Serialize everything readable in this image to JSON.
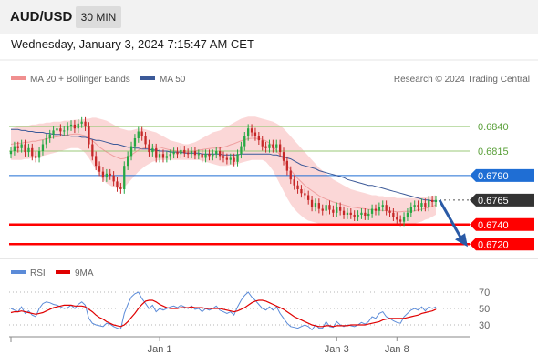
{
  "header": {
    "symbol": "AUD/USD",
    "timeframe": "30 MIN"
  },
  "timestamp": "Wednesday, January 3, 2024 7:15:47 AM CET",
  "colors": {
    "candle_up": "#27a844",
    "candle_down": "#c62828",
    "bollinger_fill": "#f9c9c9",
    "ma20": "#e77b7b",
    "ma50": "#3b5998",
    "support": "#ff0000",
    "resistance": "#9bc97a",
    "pivot": "#1f6ed4",
    "rsi": "#5b8bd8",
    "rsi_ma": "#e00000",
    "arrow": "#2a5aa6"
  },
  "legend": {
    "ma20_label": "MA 20 + Bollinger Bands",
    "ma50_label": "MA 50",
    "credit": "Research © 2024 Trading Central"
  },
  "rsi_legend": {
    "rsi_label": "RSI",
    "ma_label": "9MA"
  },
  "chart_data": [
    {
      "type": "candlestick",
      "price_levels": [
        {
          "value": 0.684,
          "label": "0.6840",
          "kind": "resistance"
        },
        {
          "value": 0.6815,
          "label": "0.6815",
          "kind": "resistance"
        },
        {
          "value": 0.679,
          "label": "0.6790",
          "kind": "pivot"
        },
        {
          "value": 0.6765,
          "label": "0.6765",
          "kind": "last"
        },
        {
          "value": 0.674,
          "label": "0.6740",
          "kind": "support"
        },
        {
          "value": 0.672,
          "label": "0.6720",
          "kind": "support"
        }
      ],
      "ylim": [
        0.6711,
        0.6867
      ],
      "projection": {
        "from": 0.6765,
        "to": 0.672,
        "direction": "down"
      },
      "close": [
        0.6815,
        0.682,
        0.6818,
        0.6822,
        0.6814,
        0.6818,
        0.681,
        0.6808,
        0.6815,
        0.6822,
        0.6828,
        0.6832,
        0.6836,
        0.6838,
        0.6835,
        0.6836,
        0.684,
        0.6842,
        0.6838,
        0.6843,
        0.6845,
        0.684,
        0.6822,
        0.681,
        0.68,
        0.6794,
        0.6788,
        0.6792,
        0.679,
        0.6784,
        0.6778,
        0.6776,
        0.68,
        0.681,
        0.682,
        0.6828,
        0.6835,
        0.683,
        0.6822,
        0.6814,
        0.6818,
        0.6808,
        0.6812,
        0.6808,
        0.681,
        0.6812,
        0.6814,
        0.6812,
        0.6816,
        0.6813,
        0.6812,
        0.6815,
        0.6811,
        0.6812,
        0.6808,
        0.6812,
        0.681,
        0.6812,
        0.6815,
        0.681,
        0.6808,
        0.6806,
        0.6808,
        0.6804,
        0.6812,
        0.682,
        0.683,
        0.6838,
        0.6834,
        0.683,
        0.6826,
        0.682,
        0.6818,
        0.6822,
        0.6818,
        0.6822,
        0.6814,
        0.6805,
        0.6795,
        0.6786,
        0.678,
        0.6776,
        0.6772,
        0.677,
        0.6765,
        0.6758,
        0.6762,
        0.6756,
        0.6754,
        0.676,
        0.6755,
        0.6752,
        0.6758,
        0.6754,
        0.675,
        0.6752,
        0.675,
        0.6748,
        0.675,
        0.6752,
        0.6749,
        0.6751,
        0.6756,
        0.6754,
        0.6758,
        0.676,
        0.6754,
        0.6752,
        0.6748,
        0.6745,
        0.6743,
        0.6748,
        0.6752,
        0.6758,
        0.676,
        0.6758,
        0.6762,
        0.6758,
        0.6765,
        0.6763,
        0.6765
      ],
      "ma50": [
        0.6837,
        0.6837,
        0.6837,
        0.6836,
        0.6836,
        0.6835,
        0.6835,
        0.6834,
        0.6834,
        0.6834,
        0.6833,
        0.6833,
        0.6832,
        0.6832,
        0.6832,
        0.6831,
        0.6831,
        0.683,
        0.683,
        0.683,
        0.6829,
        0.6829,
        0.6828,
        0.6827,
        0.6826,
        0.6826,
        0.6825,
        0.6824,
        0.6823,
        0.6822,
        0.6822,
        0.6821,
        0.682,
        0.6819,
        0.6819,
        0.6818,
        0.6818,
        0.6817,
        0.6817,
        0.6817,
        0.6816,
        0.6816,
        0.6815,
        0.6815,
        0.6815,
        0.6814,
        0.6814,
        0.6814,
        0.6814,
        0.6813,
        0.6813,
        0.6813,
        0.6813,
        0.6813,
        0.6812,
        0.6812,
        0.6812,
        0.6812,
        0.6812,
        0.6812,
        0.6811,
        0.6811,
        0.6811,
        0.6811,
        0.6811,
        0.6812,
        0.6812,
        0.6812,
        0.6812,
        0.6812,
        0.6812,
        0.6812,
        0.6812,
        0.6812,
        0.6811,
        0.6811,
        0.681,
        0.6809,
        0.6808,
        0.6807,
        0.6805,
        0.6803,
        0.6801,
        0.68,
        0.6799,
        0.6798,
        0.6797,
        0.6795,
        0.6794,
        0.6793,
        0.6792,
        0.6791,
        0.679,
        0.6789,
        0.6788,
        0.6786,
        0.6785,
        0.6784,
        0.6783,
        0.6782,
        0.6781,
        0.678,
        0.678,
        0.6779,
        0.6778,
        0.6777,
        0.6776,
        0.6775,
        0.6774,
        0.6773,
        0.6772,
        0.6771,
        0.677,
        0.6769,
        0.6768,
        0.6767,
        0.6766,
        0.6765,
        0.6765,
        0.6764,
        0.6764
      ],
      "bb_upper": [
        0.6838,
        0.6839,
        0.684,
        0.684,
        0.6841,
        0.6841,
        0.6842,
        0.6842,
        0.6843,
        0.6843,
        0.6844,
        0.6844,
        0.6845,
        0.6845,
        0.6845,
        0.6846,
        0.6846,
        0.6846,
        0.6847,
        0.6847,
        0.6847,
        0.6848,
        0.6848,
        0.6849,
        0.6849,
        0.6848,
        0.6847,
        0.6846,
        0.6844,
        0.6842,
        0.684,
        0.6838,
        0.6837,
        0.6836,
        0.6836,
        0.6837,
        0.6838,
        0.6838,
        0.6837,
        0.6836,
        0.6835,
        0.6834,
        0.6832,
        0.683,
        0.6828,
        0.6826,
        0.6825,
        0.6824,
        0.6823,
        0.6822,
        0.6822,
        0.6823,
        0.6824,
        0.6826,
        0.6828,
        0.683,
        0.6832,
        0.6834,
        0.6835,
        0.6836,
        0.6838,
        0.684,
        0.6842,
        0.6844,
        0.6846,
        0.6848,
        0.6849,
        0.685,
        0.685,
        0.685,
        0.6849,
        0.6848,
        0.6847,
        0.6846,
        0.6845,
        0.6843,
        0.6841,
        0.6838,
        0.6834,
        0.683,
        0.6826,
        0.6822,
        0.6818,
        0.6814,
        0.681,
        0.6806,
        0.6802,
        0.6798,
        0.6795,
        0.6792,
        0.6789,
        0.6786,
        0.6784,
        0.6782,
        0.678,
        0.6778,
        0.6776,
        0.6775,
        0.6774,
        0.6773,
        0.6772,
        0.6771,
        0.677,
        0.677,
        0.6769,
        0.6769,
        0.6768,
        0.6768,
        0.6768,
        0.6767,
        0.6767,
        0.6767,
        0.6767,
        0.6767,
        0.6767,
        0.6768,
        0.6768,
        0.6768,
        0.6769,
        0.6769,
        0.677
      ],
      "bb_lower": [
        0.6806,
        0.6806,
        0.6806,
        0.6806,
        0.6807,
        0.6807,
        0.6808,
        0.6808,
        0.6809,
        0.681,
        0.6811,
        0.6812,
        0.6813,
        0.6814,
        0.6815,
        0.6816,
        0.6817,
        0.6818,
        0.6818,
        0.6818,
        0.6816,
        0.6813,
        0.6808,
        0.6802,
        0.6796,
        0.679,
        0.6786,
        0.6782,
        0.678,
        0.6778,
        0.6777,
        0.6776,
        0.6778,
        0.6782,
        0.6786,
        0.679,
        0.6794,
        0.6797,
        0.68,
        0.6802,
        0.6804,
        0.6805,
        0.6806,
        0.6806,
        0.6806,
        0.6806,
        0.6806,
        0.6806,
        0.6806,
        0.6806,
        0.6806,
        0.6806,
        0.6806,
        0.6806,
        0.6805,
        0.6804,
        0.6803,
        0.6802,
        0.6801,
        0.68,
        0.68,
        0.68,
        0.6801,
        0.6801,
        0.6802,
        0.6803,
        0.6804,
        0.6805,
        0.6806,
        0.6806,
        0.6806,
        0.6806,
        0.6804,
        0.68,
        0.6795,
        0.6788,
        0.6781,
        0.6774,
        0.6767,
        0.6761,
        0.6756,
        0.6752,
        0.6749,
        0.6746,
        0.6744,
        0.6743,
        0.6742,
        0.6741,
        0.674,
        0.674,
        0.674,
        0.674,
        0.674,
        0.674,
        0.674,
        0.674,
        0.674,
        0.674,
        0.674,
        0.674,
        0.674,
        0.674,
        0.674,
        0.674,
        0.674,
        0.674,
        0.674,
        0.674,
        0.6739,
        0.6739,
        0.6739,
        0.674,
        0.674,
        0.674,
        0.6741,
        0.6742,
        0.6743,
        0.6745,
        0.6746,
        0.6748,
        0.675
      ],
      "x_ticks": [
        {
          "label": "Jan 1",
          "index": 42
        },
        {
          "label": "Jan 3",
          "index": 92
        },
        {
          "label": "Jan 8",
          "index": 109
        }
      ]
    },
    {
      "type": "line",
      "panel": "RSI",
      "ylim": [
        20,
        80
      ],
      "y_ticks": [
        70,
        50,
        30
      ],
      "rsi": [
        50,
        48,
        46,
        52,
        44,
        47,
        42,
        40,
        50,
        56,
        58,
        57,
        55,
        54,
        52,
        50,
        51,
        54,
        50,
        55,
        58,
        54,
        38,
        32,
        30,
        29,
        28,
        32,
        31,
        28,
        26,
        25,
        44,
        55,
        64,
        68,
        70,
        62,
        56,
        50,
        54,
        46,
        50,
        48,
        50,
        52,
        53,
        51,
        54,
        52,
        50,
        53,
        49,
        50,
        46,
        50,
        48,
        50,
        53,
        48,
        46,
        44,
        46,
        42,
        52,
        60,
        66,
        70,
        64,
        60,
        55,
        50,
        48,
        52,
        48,
        52,
        44,
        38,
        32,
        28,
        27,
        26,
        28,
        30,
        28,
        24,
        30,
        26,
        26,
        34,
        28,
        27,
        34,
        30,
        28,
        30,
        29,
        28,
        30,
        33,
        31,
        34,
        40,
        38,
        44,
        46,
        40,
        38,
        35,
        33,
        32,
        40,
        44,
        48,
        50,
        48,
        52,
        47,
        52,
        50,
        52
      ],
      "rsi_ma": [
        45,
        46,
        46,
        47,
        46,
        45,
        44,
        43,
        44,
        45,
        47,
        49,
        51,
        52,
        53,
        54,
        54,
        54,
        53,
        53,
        53,
        52,
        49,
        46,
        42,
        39,
        37,
        34,
        32,
        30,
        29,
        28,
        30,
        34,
        39,
        44,
        50,
        55,
        59,
        60,
        60,
        58,
        55,
        53,
        51,
        50,
        50,
        50,
        51,
        51,
        51,
        52,
        51,
        51,
        51,
        50,
        50,
        50,
        50,
        50,
        49,
        48,
        47,
        46,
        47,
        49,
        51,
        54,
        57,
        59,
        60,
        60,
        59,
        57,
        55,
        53,
        51,
        49,
        46,
        43,
        40,
        38,
        36,
        34,
        32,
        30,
        29,
        28,
        28,
        29,
        29,
        28,
        29,
        29,
        29,
        29,
        30,
        30,
        30,
        30,
        30,
        31,
        32,
        33,
        34,
        36,
        37,
        38,
        38,
        38,
        38,
        38,
        39,
        40,
        41,
        42,
        44,
        45,
        46,
        47,
        49
      ]
    }
  ]
}
